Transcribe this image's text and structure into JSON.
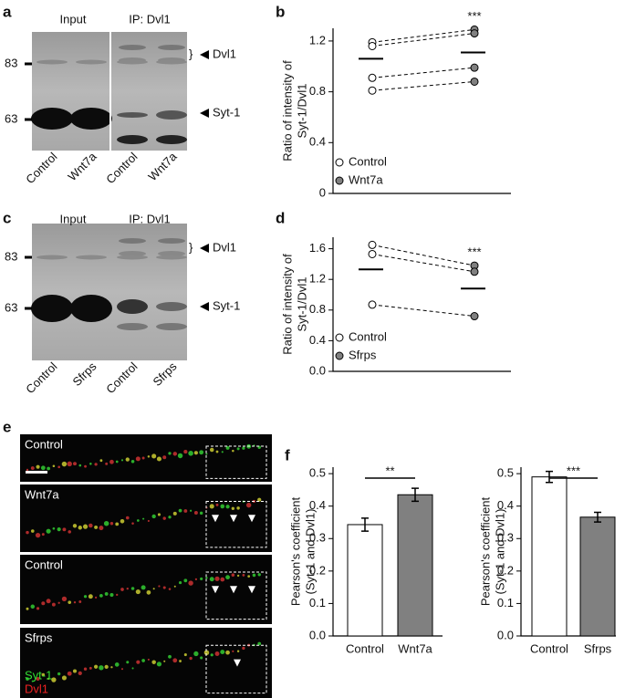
{
  "panel_labels": {
    "a": "a",
    "b": "b",
    "c": "c",
    "d": "d",
    "e": "e",
    "f": "f"
  },
  "blots": [
    {
      "headers": [
        "Input",
        "IP: Dvl1"
      ],
      "markers": [
        83,
        63
      ],
      "bands": [
        "Dvl1",
        "Syt-1"
      ],
      "lanes": [
        "Control",
        "Wnt7a",
        "Control",
        "Wnt7a"
      ]
    },
    {
      "headers": [
        "Input",
        "IP: Dvl1"
      ],
      "markers": [
        83,
        63
      ],
      "bands": [
        "Dvl1",
        "Syt-1"
      ],
      "lanes": [
        "Control",
        "Sfrps",
        "Control",
        "Sfrps"
      ]
    }
  ],
  "micrographs": {
    "panels": [
      "Control",
      "Wnt7a",
      "Control",
      "Sfrps"
    ],
    "channels": [
      "Syt-1",
      "Dvl1"
    ]
  },
  "chart_data": [
    {
      "type": "paired_dot",
      "ylabel": [
        "Ratio of intensity of",
        "Syt-1/Dvl1"
      ],
      "series": [
        {
          "name": "Control",
          "color": "#ffffff",
          "values": [
            1.19,
            1.16,
            0.91,
            0.81
          ]
        },
        {
          "name": "Wnt7a",
          "color": "#808080",
          "values": [
            1.29,
            1.26,
            0.99,
            0.88
          ]
        }
      ],
      "means": [
        1.06,
        1.11
      ],
      "annotation": "***",
      "ylim": [
        0,
        1.3
      ],
      "yticks": [
        0,
        0.4,
        0.8,
        1.2
      ]
    },
    {
      "type": "paired_dot",
      "ylabel": [
        "Ratio of intensity of",
        "Syt-1/Dvl1"
      ],
      "series": [
        {
          "name": "Control",
          "color": "#ffffff",
          "values": [
            1.65,
            1.53,
            0.87
          ]
        },
        {
          "name": "Sfrps",
          "color": "#808080",
          "values": [
            1.38,
            1.3,
            0.72
          ]
        }
      ],
      "means": [
        1.33,
        1.08
      ],
      "annotation": "***",
      "ylim": [
        0,
        1.75
      ],
      "yticks": [
        {
          "value": 0,
          "label": "0.0"
        },
        0.4,
        0.8,
        1.2,
        1.6
      ]
    },
    {
      "type": "bar",
      "ylabel": [
        "Pearson's coefficient",
        "(Syt-1 and Dvl1)"
      ],
      "categories": [
        "Control",
        "Wnt7a"
      ],
      "values": [
        0.343,
        0.435
      ],
      "errors": [
        0.02,
        0.02
      ],
      "colors": [
        "#ffffff",
        "#808080"
      ],
      "annotation": "**",
      "ylim": [
        0,
        0.52
      ],
      "yticks": [
        {
          "value": 0,
          "label": "0.0"
        },
        0.1,
        0.2,
        0.3,
        0.4,
        0.5
      ]
    },
    {
      "type": "bar",
      "ylabel": [
        "Pearson's coefficient",
        "(Syt-1 and Dvl1)"
      ],
      "categories": [
        "Control",
        "Sfrps"
      ],
      "values": [
        0.49,
        0.366
      ],
      "errors": [
        0.017,
        0.015
      ],
      "colors": [
        "#ffffff",
        "#808080"
      ],
      "annotation": "***",
      "ylim": [
        0,
        0.52
      ],
      "yticks": [
        {
          "value": 0,
          "label": "0.0"
        },
        0.1,
        0.2,
        0.3,
        0.4,
        0.5
      ]
    }
  ]
}
